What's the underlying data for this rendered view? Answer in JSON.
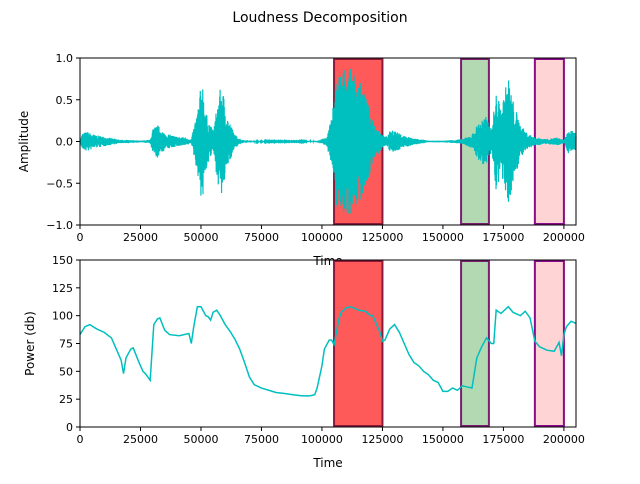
{
  "chart_data": [
    {
      "type": "line",
      "title": "Loudness Decomposition",
      "xlabel": "Time",
      "ylabel": "Amplitude",
      "xlim": [
        0,
        205000
      ],
      "ylim": [
        -1.0,
        1.0
      ],
      "xticks": [
        0,
        25000,
        50000,
        75000,
        100000,
        125000,
        150000,
        175000,
        200000
      ],
      "yticks": [
        -1.0,
        -0.5,
        0.0,
        0.5,
        1.0
      ],
      "ytick_labels": [
        "−1.0",
        "−0.5",
        "0.0",
        "0.5",
        "1.0"
      ],
      "line_color": "#00bfbf",
      "envelope": [
        {
          "x": 0,
          "a": 0.02
        },
        {
          "x": 1000,
          "a": 0.1
        },
        {
          "x": 3000,
          "a": 0.12
        },
        {
          "x": 6000,
          "a": 0.08
        },
        {
          "x": 10000,
          "a": 0.06
        },
        {
          "x": 13000,
          "a": 0.04
        },
        {
          "x": 17000,
          "a": 0.02
        },
        {
          "x": 20000,
          "a": 0.02
        },
        {
          "x": 25000,
          "a": 0.01
        },
        {
          "x": 29000,
          "a": 0.02
        },
        {
          "x": 30000,
          "a": 0.15
        },
        {
          "x": 32000,
          "a": 0.2
        },
        {
          "x": 35000,
          "a": 0.1
        },
        {
          "x": 40000,
          "a": 0.06
        },
        {
          "x": 44000,
          "a": 0.05
        },
        {
          "x": 46000,
          "a": 0.02
        },
        {
          "x": 49000,
          "a": 0.45
        },
        {
          "x": 50500,
          "a": 0.8
        },
        {
          "x": 52000,
          "a": 0.35
        },
        {
          "x": 55000,
          "a": 0.12
        },
        {
          "x": 57000,
          "a": 0.5
        },
        {
          "x": 58500,
          "a": 0.7
        },
        {
          "x": 61000,
          "a": 0.3
        },
        {
          "x": 64000,
          "a": 0.08
        },
        {
          "x": 67000,
          "a": 0.02
        },
        {
          "x": 72000,
          "a": 0.008
        },
        {
          "x": 80000,
          "a": 0.005
        },
        {
          "x": 90000,
          "a": 0.004
        },
        {
          "x": 98000,
          "a": 0.01
        },
        {
          "x": 102000,
          "a": 0.05
        },
        {
          "x": 104000,
          "a": 0.3
        },
        {
          "x": 106000,
          "a": 0.8
        },
        {
          "x": 110000,
          "a": 0.9
        },
        {
          "x": 113000,
          "a": 0.85
        },
        {
          "x": 116000,
          "a": 0.7
        },
        {
          "x": 119000,
          "a": 0.45
        },
        {
          "x": 122000,
          "a": 0.2
        },
        {
          "x": 126000,
          "a": 0.05
        },
        {
          "x": 129000,
          "a": 0.15
        },
        {
          "x": 133000,
          "a": 0.08
        },
        {
          "x": 138000,
          "a": 0.04
        },
        {
          "x": 144000,
          "a": 0.01
        },
        {
          "x": 150000,
          "a": 0.01
        },
        {
          "x": 155000,
          "a": 0.02
        },
        {
          "x": 158000,
          "a": 0.03
        },
        {
          "x": 162000,
          "a": 0.08
        },
        {
          "x": 165000,
          "a": 0.25
        },
        {
          "x": 168000,
          "a": 0.3
        },
        {
          "x": 170000,
          "a": 0.15
        },
        {
          "x": 172000,
          "a": 0.6
        },
        {
          "x": 174000,
          "a": 0.4
        },
        {
          "x": 177000,
          "a": 0.8
        },
        {
          "x": 179000,
          "a": 0.5
        },
        {
          "x": 182000,
          "a": 0.2
        },
        {
          "x": 185000,
          "a": 0.1
        },
        {
          "x": 188000,
          "a": 0.05
        },
        {
          "x": 193000,
          "a": 0.03
        },
        {
          "x": 197000,
          "a": 0.05
        },
        {
          "x": 200000,
          "a": 0.02
        },
        {
          "x": 202000,
          "a": 0.15
        },
        {
          "x": 205000,
          "a": 0.1
        }
      ]
    },
    {
      "type": "line",
      "xlabel": "Time",
      "ylabel": "Power (db)",
      "xlim": [
        0,
        205000
      ],
      "ylim": [
        0,
        150
      ],
      "xticks": [
        0,
        25000,
        50000,
        75000,
        100000,
        125000,
        150000,
        175000,
        200000
      ],
      "yticks": [
        0,
        25,
        50,
        75,
        100,
        125,
        150
      ],
      "line_color": "#00bfbf",
      "series": [
        {
          "x": [
            0,
            2000,
            4000,
            7000,
            10000,
            13000,
            15000,
            17000,
            18000,
            19000,
            21000,
            22000,
            24000,
            26000,
            27000,
            28000,
            29000,
            30500,
            32000,
            33000,
            35000,
            37000,
            41000,
            45000,
            46000,
            47000,
            48500,
            50000,
            52000,
            53000,
            54000,
            55000,
            56500,
            58000,
            60000,
            62000,
            64000,
            66000,
            68000,
            70000,
            72000,
            75000,
            78000,
            81000,
            85000,
            88000,
            92000,
            95000,
            97000,
            98000,
            100000,
            101000,
            103000,
            104000,
            105000,
            107000,
            108000,
            110000,
            112000,
            114000,
            115000,
            118000,
            120000,
            121000,
            123000,
            124000,
            125000,
            126000,
            128000,
            130000,
            132000,
            134000,
            136000,
            138000,
            140000,
            142000,
            144000,
            146000,
            148000,
            149000,
            150000,
            152000,
            154000,
            156000,
            158000,
            160000,
            162000,
            164000,
            166000,
            168000,
            170000,
            171000,
            172000,
            174000,
            177000,
            179000,
            182000,
            184000,
            186000,
            188000,
            190000,
            193000,
            196000,
            198000,
            199000,
            200000,
            201000,
            203000,
            205000
          ],
          "y": [
            83,
            90,
            92,
            88,
            85,
            80,
            70,
            60,
            48,
            62,
            70,
            71,
            60,
            50,
            48,
            45,
            42,
            92,
            97,
            98,
            87,
            83,
            82,
            84,
            75,
            90,
            108,
            108,
            100,
            99,
            96,
            103,
            105,
            100,
            92,
            86,
            79,
            70,
            58,
            45,
            38,
            35,
            33,
            31,
            30,
            29,
            28,
            28,
            29,
            35,
            55,
            70,
            78,
            78,
            74,
            97,
            103,
            107,
            108,
            106,
            105,
            104,
            100,
            100,
            90,
            85,
            77,
            78,
            88,
            92,
            85,
            75,
            65,
            58,
            55,
            50,
            47,
            42,
            40,
            36,
            32,
            32,
            35,
            33,
            37,
            36,
            35,
            62,
            72,
            80,
            75,
            75,
            105,
            102,
            108,
            103,
            100,
            104,
            98,
            77,
            72,
            69,
            68,
            76,
            64,
            83,
            90,
            95,
            93
          ]
        }
      ]
    }
  ],
  "highlight_regions": [
    {
      "x0": 105000,
      "x1": 125000,
      "fill": "#ff5a5a",
      "edge": "#8b1a3a"
    },
    {
      "x0": 157500,
      "x1": 169000,
      "fill": "#b3d9b3",
      "edge": "#7a1f6e"
    },
    {
      "x0": 188000,
      "x1": 200000,
      "fill": "#ffd4d4",
      "edge": "#8a0a8a"
    }
  ]
}
